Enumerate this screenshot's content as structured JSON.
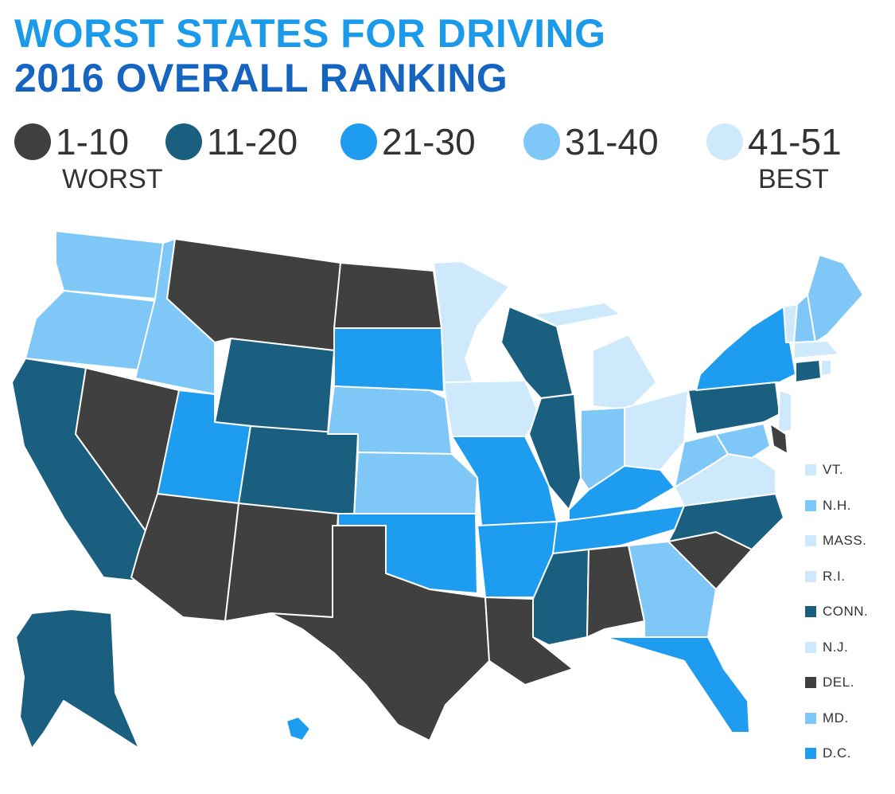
{
  "title": {
    "line1": "WORST STATES FOR DRIVING",
    "line2": "2016 OVERALL RANKING"
  },
  "legend": {
    "items": [
      {
        "label": "1-10",
        "color": "#404040"
      },
      {
        "label": "11-20",
        "color": "#1a5e80"
      },
      {
        "label": "21-30",
        "color": "#1e9cf0"
      },
      {
        "label": "31-40",
        "color": "#7ec7f7"
      },
      {
        "label": "41-51",
        "color": "#cde9fb"
      }
    ],
    "worst_label": "WORST",
    "best_label": "BEST"
  },
  "small_states": [
    {
      "label": "VT.",
      "color": "#cde9fb"
    },
    {
      "label": "N.H.",
      "color": "#7ec7f7"
    },
    {
      "label": "MASS.",
      "color": "#cde9fb"
    },
    {
      "label": "R.I.",
      "color": "#cde9fb"
    },
    {
      "label": "CONN.",
      "color": "#1a5e80"
    },
    {
      "label": "N.J.",
      "color": "#cde9fb"
    },
    {
      "label": "DEL.",
      "color": "#404040"
    },
    {
      "label": "MD.",
      "color": "#7ec7f7"
    },
    {
      "label": "D.C.",
      "color": "#1e9cf0"
    }
  ],
  "states": [
    {
      "name": "Washington",
      "tier": "31-40"
    },
    {
      "name": "Oregon",
      "tier": "31-40"
    },
    {
      "name": "California",
      "tier": "11-20"
    },
    {
      "name": "Nevada",
      "tier": "1-10"
    },
    {
      "name": "Idaho",
      "tier": "31-40"
    },
    {
      "name": "Montana",
      "tier": "1-10"
    },
    {
      "name": "Wyoming",
      "tier": "11-20"
    },
    {
      "name": "Utah",
      "tier": "21-30"
    },
    {
      "name": "Arizona",
      "tier": "1-10"
    },
    {
      "name": "Colorado",
      "tier": "11-20"
    },
    {
      "name": "New Mexico",
      "tier": "1-10"
    },
    {
      "name": "North Dakota",
      "tier": "1-10"
    },
    {
      "name": "South Dakota",
      "tier": "21-30"
    },
    {
      "name": "Nebraska",
      "tier": "31-40"
    },
    {
      "name": "Kansas",
      "tier": "31-40"
    },
    {
      "name": "Oklahoma",
      "tier": "21-30"
    },
    {
      "name": "Texas",
      "tier": "1-10"
    },
    {
      "name": "Minnesota",
      "tier": "41-51"
    },
    {
      "name": "Iowa",
      "tier": "41-51"
    },
    {
      "name": "Missouri",
      "tier": "21-30"
    },
    {
      "name": "Arkansas",
      "tier": "21-30"
    },
    {
      "name": "Louisiana",
      "tier": "1-10"
    },
    {
      "name": "Wisconsin",
      "tier": "11-20"
    },
    {
      "name": "Illinois",
      "tier": "11-20"
    },
    {
      "name": "Michigan",
      "tier": "41-51"
    },
    {
      "name": "Indiana",
      "tier": "31-40"
    },
    {
      "name": "Ohio",
      "tier": "41-51"
    },
    {
      "name": "Kentucky",
      "tier": "21-30"
    },
    {
      "name": "Tennessee",
      "tier": "21-30"
    },
    {
      "name": "Mississippi",
      "tier": "11-20"
    },
    {
      "name": "Alabama",
      "tier": "1-10"
    },
    {
      "name": "Georgia",
      "tier": "31-40"
    },
    {
      "name": "Florida",
      "tier": "21-30"
    },
    {
      "name": "South Carolina",
      "tier": "1-10"
    },
    {
      "name": "North Carolina",
      "tier": "11-20"
    },
    {
      "name": "Virginia",
      "tier": "41-51"
    },
    {
      "name": "West Virginia",
      "tier": "31-40"
    },
    {
      "name": "Pennsylvania",
      "tier": "11-20"
    },
    {
      "name": "New York",
      "tier": "21-30"
    },
    {
      "name": "Maine",
      "tier": "31-40"
    },
    {
      "name": "Alaska",
      "tier": "11-20"
    },
    {
      "name": "Hawaii",
      "tier": "21-30"
    }
  ]
}
